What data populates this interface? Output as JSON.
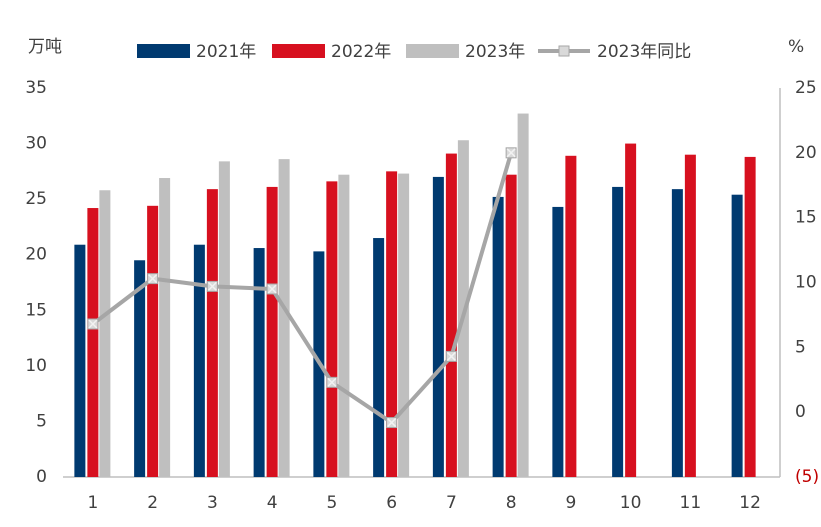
{
  "chart_data": {
    "type": "bar",
    "y_label": "万吨",
    "y2_label": "%",
    "categories": [
      "1",
      "2",
      "3",
      "4",
      "5",
      "6",
      "7",
      "8",
      "9",
      "10",
      "11",
      "12"
    ],
    "series": [
      {
        "name": "2021年",
        "color": "#003a70",
        "values": [
          20.9,
          19.5,
          20.9,
          20.6,
          20.3,
          21.5,
          27.0,
          25.2,
          24.3,
          26.1,
          25.9,
          25.4
        ]
      },
      {
        "name": "2022年",
        "color": "#d7101f",
        "values": [
          24.2,
          24.4,
          25.9,
          26.1,
          26.6,
          27.5,
          29.1,
          27.2,
          28.9,
          30.0,
          29.0,
          28.8
        ]
      },
      {
        "name": "2023年",
        "color": "#bfbfbf",
        "values": [
          25.8,
          26.9,
          28.4,
          28.6,
          27.2,
          27.3,
          30.3,
          32.7,
          null,
          null,
          null,
          null
        ]
      },
      {
        "name": "2023年同比",
        "type": "line",
        "axis": "y2",
        "color": "#a6a6a6",
        "values": [
          6.8,
          10.3,
          9.7,
          9.5,
          2.3,
          -0.8,
          4.3,
          20.0,
          null,
          null,
          null,
          null
        ]
      }
    ],
    "ylim": [
      0,
      35
    ],
    "yticks": [
      0,
      5,
      10,
      15,
      20,
      25,
      30,
      35
    ],
    "y2lim": [
      -5,
      25
    ],
    "y2ticks": [
      {
        "value": -5,
        "label": "(5)"
      },
      0,
      5,
      10,
      15,
      20,
      25
    ],
    "negative_tick_color": "#c00000",
    "grid": false,
    "legend": "top"
  }
}
